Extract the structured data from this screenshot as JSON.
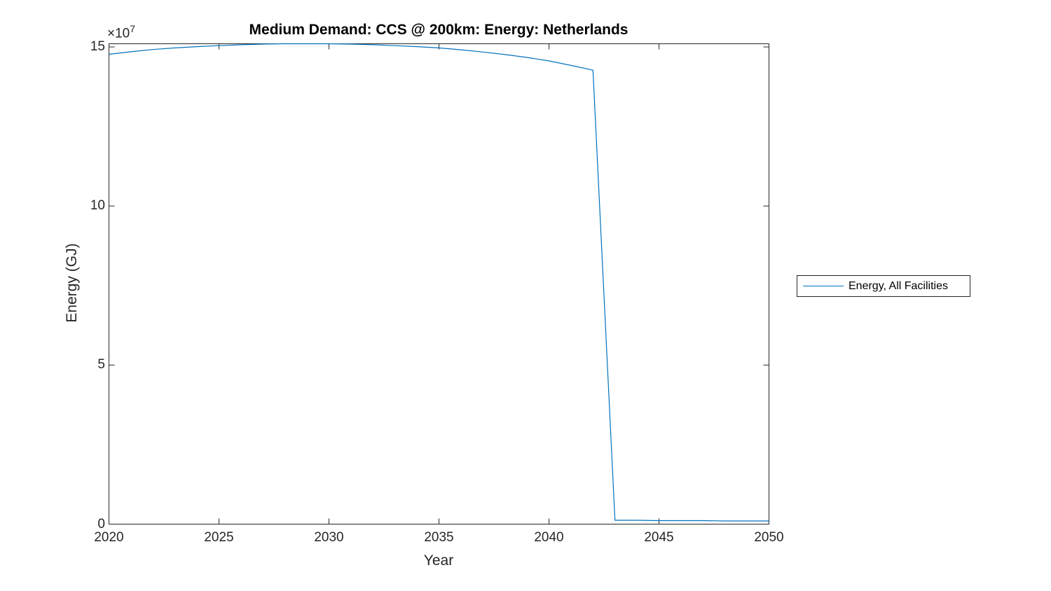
{
  "colors": {
    "background": "#ffffff",
    "axis": "#262626",
    "series_line": "#0072BD"
  },
  "chart_data": {
    "type": "line",
    "title": "Medium Demand: CCS @ 200km: Energy: Netherlands",
    "xlabel": "Year",
    "ylabel": "Energy (GJ)",
    "y_axis_multiplier": {
      "base": "×10",
      "exponent": "7"
    },
    "xlim": [
      2020,
      2050
    ],
    "ylim": [
      0,
      151000000
    ],
    "xticks": [
      2020,
      2025,
      2030,
      2035,
      2040,
      2045,
      2050
    ],
    "xtick_labels": [
      "2020",
      "2025",
      "2030",
      "2035",
      "2040",
      "2045",
      "2050"
    ],
    "yticks": [
      0,
      50000000,
      100000000,
      150000000
    ],
    "ytick_labels": [
      "0",
      "5",
      "10",
      "15"
    ],
    "grid": false,
    "box": true,
    "legend": {
      "position": "outside-right",
      "entries": [
        {
          "label": "Energy, All Facilities",
          "color": "#0072BD"
        }
      ]
    },
    "series": [
      {
        "name": "Energy, All Facilities",
        "color": "#0072BD",
        "x": [
          2020,
          2021,
          2022,
          2023,
          2024,
          2025,
          2026,
          2027,
          2028,
          2029,
          2030,
          2031,
          2032,
          2033,
          2034,
          2035,
          2036,
          2037,
          2038,
          2039,
          2040,
          2041,
          2042,
          2043,
          2044,
          2045,
          2046,
          2047,
          2048,
          2049,
          2050
        ],
        "y": [
          147700000,
          148500000,
          149200000,
          149700000,
          150100000,
          150400000,
          150700000,
          150900000,
          151000000,
          151000000,
          151000000,
          150900000,
          150700000,
          150400000,
          150100000,
          149700000,
          149100000,
          148400000,
          147600000,
          146700000,
          145600000,
          144200000,
          142700000,
          1200000,
          1200000,
          1100000,
          1100000,
          1100000,
          1000000,
          1000000,
          1000000
        ]
      }
    ]
  }
}
